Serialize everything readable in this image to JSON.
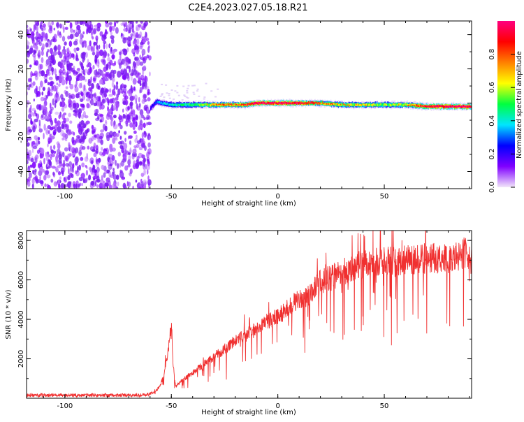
{
  "title": "C2E4.2023.027.05.18.R21",
  "chart_data": [
    {
      "type": "heatmap",
      "xlabel": "Height of straight line (km)",
      "ylabel": "Frequency (Hz)",
      "xlim": [
        -118,
        91
      ],
      "ylim": [
        -50,
        48
      ],
      "xticks": [
        "-100",
        "-50",
        "0",
        "50"
      ],
      "yticks": [
        "-40",
        "-20",
        "0",
        "20",
        "40"
      ],
      "colorbar": {
        "label": "Normalized spectral amplitude",
        "range": [
          0,
          1
        ],
        "ticks": [
          "0.0",
          "0.2",
          "0.4",
          "0.6",
          "0.8"
        ],
        "colors": [
          "#f2e6fa",
          "#8000ff",
          "#0000ff",
          "#00e5ff",
          "#00ff40",
          "#ffff00",
          "#ff8000",
          "#ff0000",
          "#ff0080"
        ]
      },
      "noise_region": {
        "x_from": -118,
        "x_to": -60,
        "freq_from": -50,
        "freq_to": 48,
        "amplitude": [
          0.0,
          0.15
        ]
      },
      "signal_ridge": {
        "x": [
          -60,
          -57,
          -55,
          -50,
          -45,
          -40,
          -35,
          -30,
          -25,
          -20,
          -15,
          -10,
          -5,
          0,
          10,
          20,
          30,
          40,
          50,
          60,
          70,
          80,
          91
        ],
        "freq": [
          -3,
          1,
          0,
          -1,
          -1,
          -1,
          -1,
          -1,
          -1,
          -1,
          -1,
          0,
          0,
          0,
          0,
          0,
          -1,
          -1,
          -1,
          -1,
          -2,
          -2,
          -2
        ],
        "amplitude": [
          0.2,
          0.3,
          0.35,
          0.4,
          0.45,
          0.5,
          0.55,
          0.65,
          0.7,
          0.7,
          0.75,
          0.9,
          0.9,
          0.9,
          0.85,
          0.7,
          0.6,
          0.6,
          0.55,
          0.6,
          0.85,
          0.9,
          0.9
        ]
      }
    },
    {
      "type": "line",
      "xlabel": "Height of straight line (km)",
      "ylabel": "SNR (10 * v/v)",
      "xlim": [
        -118,
        91
      ],
      "ylim": [
        0,
        8500
      ],
      "xticks": [
        "-100",
        "-50",
        "0",
        "50"
      ],
      "yticks": [
        "2000",
        "4000",
        "6000",
        "8000"
      ],
      "color": "#f03030",
      "series": [
        {
          "x": [
            -118,
            -110,
            -100,
            -90,
            -80,
            -70,
            -62,
            -58,
            -56,
            -54,
            -52,
            -50,
            -49,
            -48,
            -45,
            -40,
            -35,
            -30,
            -25,
            -20,
            -15,
            -10,
            -5,
            0,
            5,
            10,
            15,
            20,
            25,
            30,
            35,
            40,
            45,
            50,
            55,
            60,
            65,
            70,
            75,
            80,
            85,
            88,
            91
          ],
          "y": [
            150,
            150,
            150,
            150,
            150,
            150,
            160,
            300,
            500,
            1000,
            2000,
            3800,
            1500,
            600,
            900,
            1300,
            1700,
            2100,
            2500,
            2900,
            3200,
            3500,
            3900,
            4100,
            4600,
            5000,
            5300,
            5900,
            6100,
            6400,
            6600,
            6800,
            6900,
            7000,
            6900,
            7000,
            7000,
            7100,
            7100,
            7000,
            7200,
            7400,
            6900
          ]
        }
      ]
    }
  ]
}
